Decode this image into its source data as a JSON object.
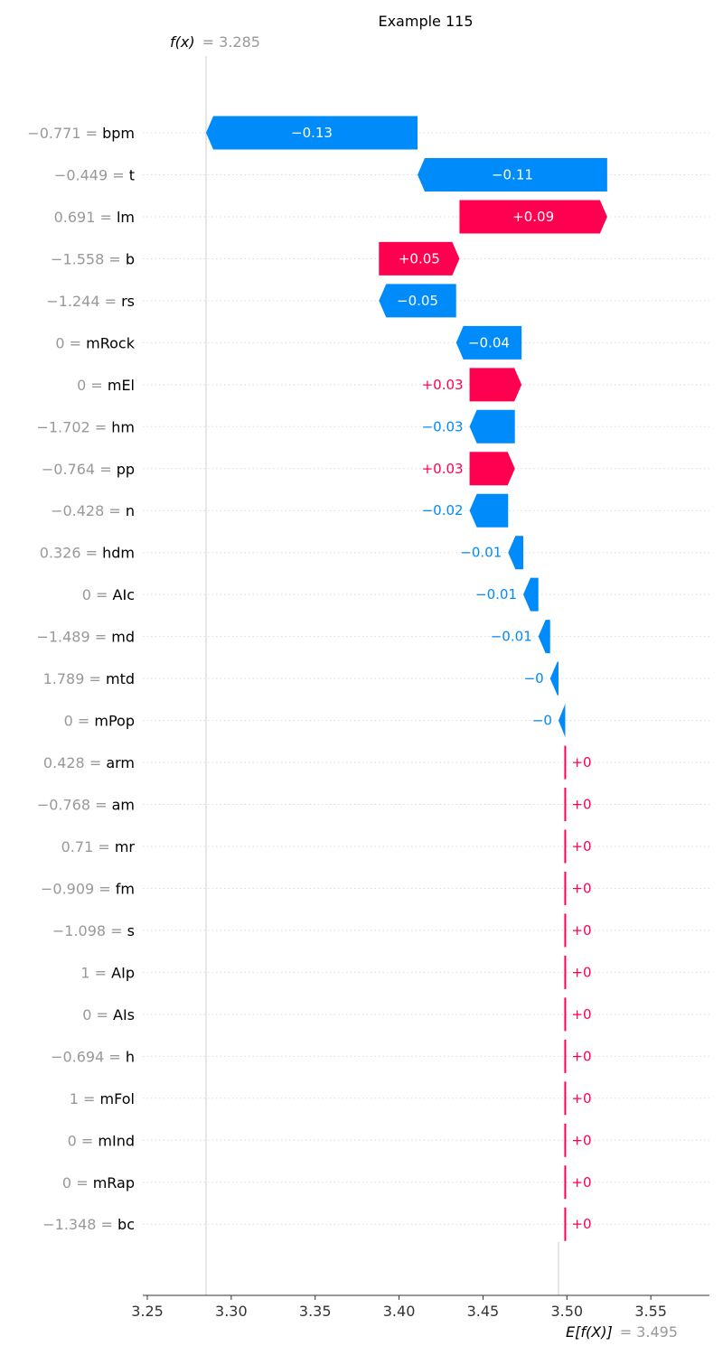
{
  "chart_data": {
    "type": "waterfall",
    "title": "Example 115",
    "fx_symbol": "f(x)",
    "fx_value": 3.285,
    "fx_label": "= 3.285",
    "efx_symbol": "E[f(X)]",
    "efx_value": 3.495,
    "efx_label": "= 3.495",
    "xlim": [
      3.24,
      3.56
    ],
    "xticks": [
      3.25,
      3.3,
      3.35,
      3.4,
      3.45,
      3.5,
      3.55
    ],
    "xtick_labels": [
      "3.25",
      "3.30",
      "3.35",
      "3.40",
      "3.45",
      "3.50",
      "3.55"
    ],
    "colors": {
      "negative": "#008bfb",
      "positive": "#ff0051",
      "grid": "#cccccc",
      "axis": "#333333"
    },
    "features": [
      {
        "value_text": "−0.771 =",
        "name": "bpm",
        "start": 3.411,
        "end": 3.285,
        "contribution": -0.126,
        "label": "−0.13"
      },
      {
        "value_text": "−0.449 =",
        "name": "t",
        "start": 3.524,
        "end": 3.411,
        "contribution": -0.113,
        "label": "−0.11"
      },
      {
        "value_text": "0.691 =",
        "name": "lm",
        "start": 3.436,
        "end": 3.524,
        "contribution": 0.088,
        "label": "+0.09"
      },
      {
        "value_text": "−1.558 =",
        "name": "b",
        "start": 3.388,
        "end": 3.436,
        "contribution": 0.048,
        "label": "+0.05"
      },
      {
        "value_text": "−1.244 =",
        "name": "rs",
        "start": 3.434,
        "end": 3.388,
        "contribution": -0.046,
        "label": "−0.05"
      },
      {
        "value_text": "0 =",
        "name": "mRock",
        "start": 3.473,
        "end": 3.434,
        "contribution": -0.039,
        "label": "−0.04"
      },
      {
        "value_text": "0 =",
        "name": "mEl",
        "start": 3.442,
        "end": 3.473,
        "contribution": 0.031,
        "label": "+0.03"
      },
      {
        "value_text": "−1.702 =",
        "name": "hm",
        "start": 3.469,
        "end": 3.442,
        "contribution": -0.027,
        "label": "−0.03"
      },
      {
        "value_text": "−0.764 =",
        "name": "pp",
        "start": 3.442,
        "end": 3.469,
        "contribution": 0.027,
        "label": "+0.03"
      },
      {
        "value_text": "−0.428 =",
        "name": "n",
        "start": 3.465,
        "end": 3.442,
        "contribution": -0.023,
        "label": "−0.02"
      },
      {
        "value_text": "0.326 =",
        "name": "hdm",
        "start": 3.474,
        "end": 3.465,
        "contribution": -0.009,
        "label": "−0.01"
      },
      {
        "value_text": "0 =",
        "name": "AIc",
        "start": 3.483,
        "end": 3.474,
        "contribution": -0.009,
        "label": "−0.01"
      },
      {
        "value_text": "−1.489 =",
        "name": "md",
        "start": 3.49,
        "end": 3.483,
        "contribution": -0.007,
        "label": "−0.01"
      },
      {
        "value_text": "1.789 =",
        "name": "mtd",
        "start": 3.495,
        "end": 3.49,
        "contribution": -0.004,
        "label": "−0"
      },
      {
        "value_text": "0 =",
        "name": "mPop",
        "start": 3.499,
        "end": 3.495,
        "contribution": -0.004,
        "label": "−0"
      },
      {
        "value_text": "0.428 =",
        "name": "arm",
        "start": 3.4985,
        "end": 3.499,
        "contribution": 0.0005,
        "label": "+0"
      },
      {
        "value_text": "−0.768 =",
        "name": "am",
        "start": 3.4985,
        "end": 3.499,
        "contribution": 0.0005,
        "label": "+0"
      },
      {
        "value_text": "0.71 =",
        "name": "mr",
        "start": 3.4985,
        "end": 3.499,
        "contribution": 0.0005,
        "label": "+0"
      },
      {
        "value_text": "−0.909 =",
        "name": "fm",
        "start": 3.4985,
        "end": 3.499,
        "contribution": 0.0005,
        "label": "+0"
      },
      {
        "value_text": "−1.098 =",
        "name": "s",
        "start": 3.4985,
        "end": 3.499,
        "contribution": 0.0005,
        "label": "+0"
      },
      {
        "value_text": "1 =",
        "name": "AIp",
        "start": 3.4985,
        "end": 3.499,
        "contribution": 0.0005,
        "label": "+0"
      },
      {
        "value_text": "0 =",
        "name": "AIs",
        "start": 3.4985,
        "end": 3.499,
        "contribution": 0.0005,
        "label": "+0"
      },
      {
        "value_text": "−0.694 =",
        "name": "h",
        "start": 3.4985,
        "end": 3.499,
        "contribution": 0.0005,
        "label": "+0"
      },
      {
        "value_text": "1 =",
        "name": "mFol",
        "start": 3.4985,
        "end": 3.499,
        "contribution": 0.0005,
        "label": "+0"
      },
      {
        "value_text": "0 =",
        "name": "mInd",
        "start": 3.4985,
        "end": 3.499,
        "contribution": 0.0005,
        "label": "+0"
      },
      {
        "value_text": "0 =",
        "name": "mRap",
        "start": 3.4985,
        "end": 3.499,
        "contribution": 0.0005,
        "label": "+0"
      },
      {
        "value_text": "−1.348 =",
        "name": "bc",
        "start": 3.4985,
        "end": 3.499,
        "contribution": 0.0005,
        "label": "+0"
      }
    ]
  }
}
